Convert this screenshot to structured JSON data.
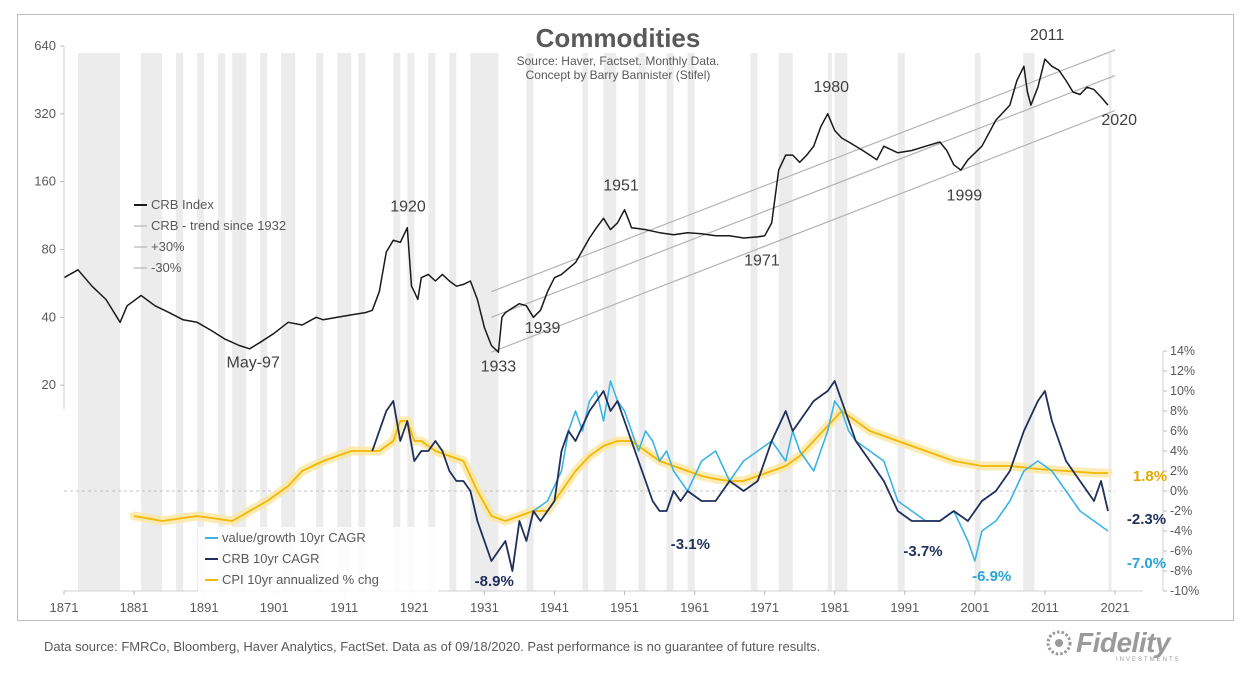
{
  "chart_data": {
    "type": "line",
    "title": "Commodities",
    "subtitle_lines": [
      "Source: Haver, Factset. Monthly Data.",
      "Concept by Barry Bannister (Stifel)"
    ],
    "x_tick_labels": [
      "1871",
      "1881",
      "1891",
      "1901",
      "1911",
      "1921",
      "1931",
      "1941",
      "1951",
      "1961",
      "1971",
      "1981",
      "1991",
      "2001",
      "2011",
      "2021"
    ],
    "x_range": [
      1871,
      2021
    ],
    "left_axis": {
      "scale": "log2",
      "range": [
        16,
        640
      ],
      "ticks": [
        640,
        320,
        160,
        80,
        40,
        20
      ]
    },
    "right_axis": {
      "range": [
        -10,
        14
      ],
      "ticks": [
        "14%",
        "12%",
        "10%",
        "8%",
        "6%",
        "4%",
        "2%",
        "0%",
        "-2%",
        "-4%",
        "-6%",
        "-8%",
        "-10%"
      ]
    },
    "recession_bands": [
      [
        1873,
        1879
      ],
      [
        1882,
        1885
      ],
      [
        1887,
        1888
      ],
      [
        1890,
        1891
      ],
      [
        1893,
        1894
      ],
      [
        1895,
        1897
      ],
      [
        1899,
        1900
      ],
      [
        1902,
        1904
      ],
      [
        1907,
        1908
      ],
      [
        1910,
        1912
      ],
      [
        1913,
        1914
      ],
      [
        1918,
        1919
      ],
      [
        1920,
        1921
      ],
      [
        1923,
        1924
      ],
      [
        1926,
        1927
      ],
      [
        1929,
        1933
      ],
      [
        1937,
        1938
      ],
      [
        1945,
        1945.8
      ],
      [
        1948,
        1949.8
      ],
      [
        1953,
        1954
      ],
      [
        1957,
        1958
      ],
      [
        1960,
        1961
      ],
      [
        1969,
        1970
      ],
      [
        1973,
        1975
      ],
      [
        1980,
        1980.6
      ],
      [
        1981,
        1982.8
      ],
      [
        1990,
        1991
      ],
      [
        2001,
        2001.8
      ],
      [
        2007.9,
        2009.5
      ],
      [
        2020.1,
        2020.5
      ]
    ],
    "legend_top": [
      "CRB Index",
      "CRB - trend since 1932",
      "+30%",
      "-30%"
    ],
    "legend_bottom": [
      "value/growth 10yr CAGR",
      "CRB 10yr CAGR",
      "CPI 10yr annualized % chg"
    ],
    "colors": {
      "crb": "#1a1a1a",
      "trend": "#b3b3b3",
      "value_growth": "#3bb4e5",
      "crb_cagr": "#1f2f5c",
      "cpi": "#f2b705",
      "cpi_glow": "#fbe6a0",
      "band": "#ececec"
    },
    "series": [
      {
        "name": "CRB Index",
        "axis": "left",
        "x": [
          1871,
          1873,
          1875,
          1877,
          1879,
          1880,
          1882,
          1884,
          1886,
          1888,
          1890,
          1892,
          1894,
          1896,
          1897.5,
          1899,
          1901,
          1903,
          1905,
          1907,
          1908,
          1910,
          1912,
          1914,
          1915,
          1916,
          1917,
          1918,
          1919,
          1920,
          1920.6,
          1921,
          1921.5,
          1922,
          1923,
          1924,
          1925,
          1926,
          1927,
          1928,
          1929,
          1930,
          1931,
          1932,
          1933,
          1933.5,
          1934,
          1935,
          1936,
          1937,
          1938,
          1939,
          1940,
          1941,
          1942,
          1944,
          1946,
          1947,
          1948,
          1949,
          1950,
          1951,
          1951.5,
          1952,
          1954,
          1956,
          1958,
          1960,
          1962,
          1964,
          1966,
          1968,
          1970,
          1971,
          1972,
          1973,
          1974,
          1975,
          1976,
          1977,
          1978,
          1979,
          1980,
          1981,
          1982,
          1983,
          1985,
          1987,
          1988,
          1990,
          1992,
          1994,
          1996,
          1997,
          1998,
          1999,
          2000,
          2002,
          2004,
          2006,
          2007,
          2008,
          2008.5,
          2009,
          2010,
          2011,
          2012,
          2013,
          2014,
          2015,
          2016,
          2017,
          2018,
          2019,
          2020
        ],
        "values": [
          60,
          65,
          55,
          48,
          38,
          45,
          50,
          45,
          42,
          39,
          38,
          35,
          32,
          30,
          29,
          31,
          34,
          38,
          37,
          40,
          39,
          40,
          41,
          42,
          43,
          52,
          78,
          88,
          86,
          100,
          55,
          52,
          48,
          60,
          62,
          58,
          62,
          58,
          55,
          56,
          58,
          48,
          36,
          30,
          28,
          40,
          42,
          44,
          46,
          45,
          40,
          43,
          52,
          60,
          62,
          70,
          90,
          100,
          110,
          98,
          105,
          120,
          110,
          100,
          98,
          95,
          93,
          95,
          94,
          92,
          92,
          90,
          91,
          92,
          105,
          180,
          210,
          210,
          195,
          210,
          230,
          280,
          320,
          270,
          250,
          240,
          220,
          200,
          230,
          215,
          220,
          230,
          240,
          220,
          190,
          180,
          200,
          230,
          300,
          350,
          450,
          520,
          400,
          350,
          420,
          560,
          520,
          500,
          450,
          400,
          390,
          420,
          410,
          380,
          350
        ]
      },
      {
        "name": "CRB - trend since 1932",
        "axis": "left",
        "x": [
          1932,
          2021
        ],
        "values": [
          40,
          473
        ]
      },
      {
        "name": "+30%",
        "axis": "left",
        "x": [
          1932,
          2021
        ],
        "values": [
          52,
          615
        ]
      },
      {
        "name": "-30%",
        "axis": "left",
        "x": [
          1932,
          2021
        ],
        "values": [
          28,
          331
        ]
      },
      {
        "name": "value/growth 10yr CAGR",
        "axis": "right",
        "x": [
          1938,
          1940,
          1942,
          1943,
          1944,
          1945,
          1946,
          1947,
          1948,
          1949,
          1950,
          1951,
          1952,
          1953,
          1954,
          1955,
          1956,
          1957,
          1958,
          1960,
          1962,
          1964,
          1966,
          1968,
          1970,
          1972,
          1974,
          1975,
          1976,
          1978,
          1980,
          1981,
          1982,
          1983,
          1984,
          1986,
          1988,
          1990,
          1992,
          1994,
          1996,
          1998,
          2000,
          2001,
          2002,
          2004,
          2006,
          2008,
          2010,
          2012,
          2014,
          2016,
          2018,
          2020
        ],
        "values": [
          -2,
          -1,
          2,
          6,
          8,
          6,
          9,
          10,
          7,
          11,
          9,
          8,
          6,
          4,
          6,
          5,
          3,
          4,
          2,
          0,
          3,
          4,
          1,
          3,
          4,
          5,
          3,
          6,
          4,
          2,
          6,
          9,
          8,
          6,
          5,
          4,
          3,
          -1,
          -2,
          -3,
          -3,
          -2,
          -5,
          -7,
          -4,
          -3,
          -1,
          2,
          3,
          2,
          0,
          -2,
          -3,
          -4
        ]
      },
      {
        "name": "CRB 10yr CAGR",
        "axis": "right",
        "x": [
          1915,
          1916,
          1917,
          1918,
          1919,
          1920,
          1921,
          1922,
          1923,
          1924,
          1925,
          1926,
          1927,
          1928,
          1929,
          1930,
          1931,
          1932,
          1933,
          1934,
          1935,
          1936,
          1937,
          1938,
          1939,
          1940,
          1941,
          1942,
          1943,
          1944,
          1946,
          1947,
          1948,
          1949,
          1950,
          1951,
          1952,
          1953,
          1954,
          1955,
          1956,
          1957,
          1958,
          1959,
          1960,
          1962,
          1964,
          1966,
          1968,
          1970,
          1972,
          1974,
          1975,
          1976,
          1978,
          1980,
          1981,
          1982,
          1984,
          1986,
          1988,
          1990,
          1992,
          1994,
          1996,
          1998,
          2000,
          2002,
          2004,
          2006,
          2008,
          2010,
          2011,
          2012,
          2014,
          2016,
          2018,
          2019,
          2020
        ],
        "values": [
          4,
          6,
          8,
          9,
          5,
          7,
          3,
          4,
          4,
          5,
          4,
          2,
          1,
          1,
          0,
          -3,
          -5,
          -7,
          -6,
          -5,
          -8,
          -3,
          -5,
          -2,
          -3,
          -2,
          -1,
          4,
          6,
          5,
          8,
          9,
          10,
          8,
          9,
          7,
          5,
          3,
          1,
          -1,
          -2,
          -2,
          0,
          -1,
          0,
          -1,
          -1,
          1,
          0,
          1,
          5,
          8,
          6,
          7,
          9,
          10,
          11,
          9,
          5,
          3,
          1,
          -2,
          -3,
          -3,
          -3,
          -2,
          -3,
          -1,
          0,
          2,
          6,
          9,
          10,
          7,
          3,
          1,
          -1,
          1,
          -2
        ]
      },
      {
        "name": "CPI 10yr annualized % chg",
        "axis": "right",
        "x": [
          1881,
          1885,
          1890,
          1895,
          1900,
          1903,
          1905,
          1908,
          1910,
          1912,
          1914,
          1916,
          1918,
          1919,
          1920,
          1921,
          1922,
          1924,
          1926,
          1928,
          1930,
          1932,
          1934,
          1936,
          1938,
          1940,
          1942,
          1944,
          1946,
          1948,
          1950,
          1952,
          1954,
          1956,
          1958,
          1960,
          1962,
          1964,
          1966,
          1968,
          1970,
          1972,
          1974,
          1976,
          1978,
          1980,
          1982,
          1984,
          1986,
          1988,
          1990,
          1994,
          1998,
          2002,
          2006,
          2010,
          2014,
          2018,
          2020
        ],
        "values": [
          -2.5,
          -3,
          -2.5,
          -3,
          -1,
          0.5,
          2,
          3,
          3.5,
          4,
          4,
          4,
          5,
          7,
          7,
          5,
          5,
          4,
          3.5,
          3,
          0,
          -2.5,
          -3,
          -2.5,
          -2,
          -2,
          0,
          2,
          3.5,
          4.5,
          5,
          5,
          4,
          3,
          2.5,
          2,
          1.5,
          1.2,
          1,
          1,
          1.5,
          2,
          2.5,
          3.5,
          5,
          6.5,
          8,
          7,
          6,
          5.5,
          5,
          4,
          3,
          2.5,
          2.5,
          2.2,
          2,
          1.8,
          1.8
        ]
      }
    ],
    "annotations": {
      "crb": [
        {
          "text": "1920",
          "x": 1920.1,
          "y": 118
        },
        {
          "text": "May-97",
          "x": 1898,
          "y": 24
        },
        {
          "text": "1933",
          "x": 1933,
          "y": 23
        },
        {
          "text": "1939",
          "x": 1939.3,
          "y": 34
        },
        {
          "text": "1951",
          "x": 1950.5,
          "y": 146
        },
        {
          "text": "1971",
          "x": 1970.6,
          "y": 68
        },
        {
          "text": "1980",
          "x": 1980.5,
          "y": 400
        },
        {
          "text": "1999",
          "x": 1999.5,
          "y": 132
        },
        {
          "text": "2011",
          "x": 2011.3,
          "y": 680
        },
        {
          "text": "2020",
          "x": 2021.6,
          "y": 285
        }
      ],
      "pct": [
        {
          "text": "-8.9%",
          "x": 1932.4,
          "y": -9.5,
          "color": "#1f2f5c"
        },
        {
          "text": "-3.1%",
          "x": 1960.4,
          "y": -5.8,
          "color": "#1f2f5c"
        },
        {
          "text": "-3.7%",
          "x": 1993.6,
          "y": -6.5,
          "color": "#1f2f5c"
        },
        {
          "text": "-6.9%",
          "x": 2003.4,
          "y": -9.0,
          "color": "#2aa3d9"
        },
        {
          "text": "-2.3%",
          "x": 2025.5,
          "y": -3.3,
          "color": "#1f2f5c"
        },
        {
          "text": "-7.0%",
          "x": 2025.5,
          "y": -7.7,
          "color": "#2aa3d9"
        },
        {
          "text": "1.8%",
          "x": 2026,
          "y": 1.0,
          "color": "#e3a800"
        }
      ]
    }
  },
  "footnote": "Data source: FMRCo, Bloomberg, Haver Analytics, FactSet. Data as of 09/18/2020. Past performance is no guarantee of future results.",
  "logo": {
    "word": "Fidelity",
    "sub": "INVESTMENTS"
  }
}
